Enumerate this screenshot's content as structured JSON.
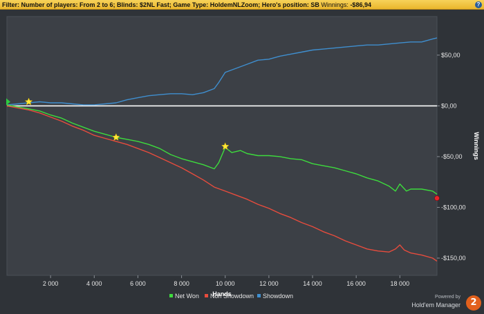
{
  "filter": {
    "label": "Filter:",
    "text": "Number of players: From 2 to 6; Blinds: $2NL Fast; Game Type: HoldemNLZoom; Hero's position: SB",
    "winnings_label": "Winnings:",
    "winnings_value": "-$86,94",
    "help_icon": "question-icon",
    "help_label": "?"
  },
  "branding": {
    "powered_by": "Powered by",
    "name": "Hold'em Manager",
    "logo_text": "2"
  },
  "chart_data": {
    "type": "line",
    "xlabel": "Hands",
    "ylabel": "Winnings",
    "xlim": [
      0,
      19700
    ],
    "ylim": [
      -167,
      88
    ],
    "x_ticks": [
      2000,
      4000,
      6000,
      8000,
      10000,
      12000,
      14000,
      16000,
      18000
    ],
    "x_tick_labels": [
      "2 000",
      "4 000",
      "6 000",
      "8 000",
      "10 000",
      "12 000",
      "14 000",
      "16 000",
      "18 000"
    ],
    "y_ticks": [
      50,
      0,
      -50,
      -100,
      -150
    ],
    "y_tick_labels": [
      "$50,00",
      "$0,00",
      "-$50,00",
      "-$100,00",
      "-$150,00"
    ],
    "zero_line": true,
    "grid": false,
    "legend_position": "bottom",
    "series": [
      {
        "name": "Net Won",
        "color": "#3ddc3d",
        "x": [
          0,
          500,
          1000,
          1500,
          2000,
          2500,
          3000,
          3500,
          4000,
          4500,
          5000,
          5500,
          6000,
          6500,
          7000,
          7500,
          8000,
          8500,
          9000,
          9500,
          9700,
          10000,
          10300,
          10700,
          11000,
          11500,
          12000,
          12500,
          13000,
          13500,
          14000,
          14500,
          15000,
          15500,
          16000,
          16500,
          17000,
          17500,
          17800,
          18000,
          18300,
          18500,
          19000,
          19500,
          19700
        ],
        "y": [
          1,
          -1,
          -3,
          -5,
          -9,
          -12,
          -17,
          -21,
          -25,
          -28,
          -31,
          -33,
          -35,
          -38,
          -42,
          -48,
          -52,
          -55,
          -58,
          -62,
          -56,
          -41,
          -46,
          -44,
          -47,
          -49,
          -49,
          -50,
          -52,
          -53,
          -57,
          -59,
          -61,
          -64,
          -67,
          -71,
          -74,
          -79,
          -84,
          -77,
          -84,
          -82,
          -82,
          -84,
          -87
        ]
      },
      {
        "name": "Non Showdown",
        "color": "#e84c3d",
        "x": [
          0,
          500,
          1000,
          1500,
          2000,
          2500,
          3000,
          3500,
          4000,
          4500,
          5000,
          5500,
          6000,
          6500,
          7000,
          7500,
          8000,
          8500,
          9000,
          9500,
          10000,
          10500,
          11000,
          11500,
          12000,
          12500,
          13000,
          13500,
          14000,
          14500,
          15000,
          15500,
          16000,
          16500,
          17000,
          17500,
          17800,
          18000,
          18200,
          18500,
          19000,
          19500,
          19700
        ],
        "y": [
          0,
          -2,
          -4,
          -7,
          -11,
          -15,
          -20,
          -24,
          -29,
          -32,
          -35,
          -38,
          -42,
          -46,
          -51,
          -56,
          -61,
          -67,
          -73,
          -80,
          -84,
          -88,
          -92,
          -97,
          -101,
          -106,
          -110,
          -115,
          -119,
          -124,
          -128,
          -133,
          -137,
          -141,
          -143,
          -144,
          -141,
          -137,
          -142,
          -145,
          -147,
          -150,
          -153
        ]
      },
      {
        "name": "Showdown",
        "color": "#3f8fd0",
        "x": [
          0,
          500,
          1000,
          1500,
          2000,
          2500,
          3000,
          3500,
          4000,
          4500,
          5000,
          5500,
          6000,
          6500,
          7000,
          7500,
          8000,
          8500,
          9000,
          9500,
          9700,
          10000,
          10500,
          11000,
          11500,
          12000,
          12500,
          13000,
          13500,
          14000,
          14500,
          15000,
          15500,
          16000,
          16500,
          17000,
          17500,
          18000,
          18500,
          19000,
          19500,
          19700
        ],
        "y": [
          1,
          2,
          3,
          4,
          3,
          3,
          2,
          1,
          1,
          2,
          3,
          6,
          8,
          10,
          11,
          12,
          12,
          11,
          13,
          17,
          23,
          33,
          37,
          41,
          45,
          46,
          49,
          51,
          53,
          55,
          56,
          57,
          58,
          59,
          60,
          60,
          61,
          62,
          63,
          63,
          66,
          67
        ]
      }
    ],
    "markers": [
      {
        "type": "star",
        "x": 1000,
        "y": 4
      },
      {
        "type": "star",
        "x": 5000,
        "y": -31
      },
      {
        "type": "star",
        "x": 10000,
        "y": -40
      },
      {
        "type": "start",
        "x": 0,
        "y": 4
      },
      {
        "type": "end",
        "x": 19700,
        "y": -91
      }
    ]
  }
}
